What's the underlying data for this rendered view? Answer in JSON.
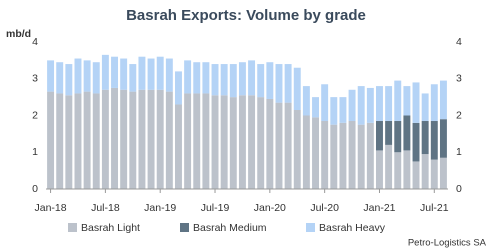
{
  "chart_data": {
    "type": "bar",
    "stacked": true,
    "title": "Basrah Exports: Volume by grade",
    "y_label": "mb/d",
    "source": "Petro-Logistics SA",
    "categories": [
      "Jan-18",
      null,
      null,
      null,
      null,
      null,
      "Jul-18",
      null,
      null,
      null,
      null,
      null,
      "Jan-19",
      null,
      null,
      null,
      null,
      null,
      "Jul-19",
      null,
      null,
      null,
      null,
      null,
      "Jan-20",
      null,
      null,
      null,
      null,
      null,
      "Jul-20",
      null,
      null,
      null,
      null,
      null,
      "Jan-21",
      null,
      null,
      null,
      null,
      null,
      "Jul-21",
      null
    ],
    "series": [
      {
        "name": "Basrah Light",
        "color": "#bcc2cb",
        "values": [
          2.65,
          2.6,
          2.55,
          2.6,
          2.65,
          2.6,
          2.7,
          2.75,
          2.7,
          2.65,
          2.7,
          2.7,
          2.7,
          2.65,
          2.3,
          2.6,
          2.6,
          2.6,
          2.55,
          2.55,
          2.5,
          2.55,
          2.55,
          2.5,
          2.45,
          2.35,
          2.35,
          2.15,
          2.0,
          1.95,
          1.85,
          1.75,
          1.8,
          1.85,
          1.75,
          1.8,
          1.05,
          1.2,
          1.0,
          1.05,
          0.75,
          0.95,
          0.8,
          0.85
        ]
      },
      {
        "name": "Basrah Medium",
        "color": "#5f7484",
        "values": [
          null,
          null,
          null,
          null,
          null,
          null,
          null,
          null,
          null,
          null,
          null,
          null,
          null,
          null,
          null,
          null,
          null,
          null,
          null,
          null,
          null,
          null,
          null,
          null,
          null,
          null,
          null,
          null,
          null,
          null,
          null,
          null,
          null,
          null,
          null,
          null,
          0.8,
          0.65,
          0.85,
          0.95,
          1.05,
          0.9,
          1.05,
          1.05
        ]
      },
      {
        "name": "Basrah Heavy",
        "color": "#b4d3f6",
        "values": [
          0.85,
          0.85,
          0.85,
          0.95,
          0.85,
          0.85,
          0.95,
          0.85,
          0.85,
          0.75,
          0.9,
          0.85,
          0.9,
          0.9,
          0.9,
          0.9,
          0.85,
          0.85,
          0.85,
          0.85,
          0.9,
          0.9,
          0.95,
          0.9,
          1.0,
          1.05,
          1.05,
          1.15,
          0.8,
          0.55,
          1.0,
          0.75,
          0.7,
          0.85,
          1.05,
          0.95,
          0.95,
          0.95,
          1.1,
          0.8,
          1.1,
          0.75,
          1.0,
          1.05
        ]
      }
    ],
    "ylim": [
      0,
      4
    ],
    "yticks": [
      0,
      1,
      2,
      3,
      4
    ],
    "y2lim": [
      0,
      4
    ],
    "y2ticks": [
      0,
      1,
      2,
      3,
      4
    ],
    "grid": false
  }
}
